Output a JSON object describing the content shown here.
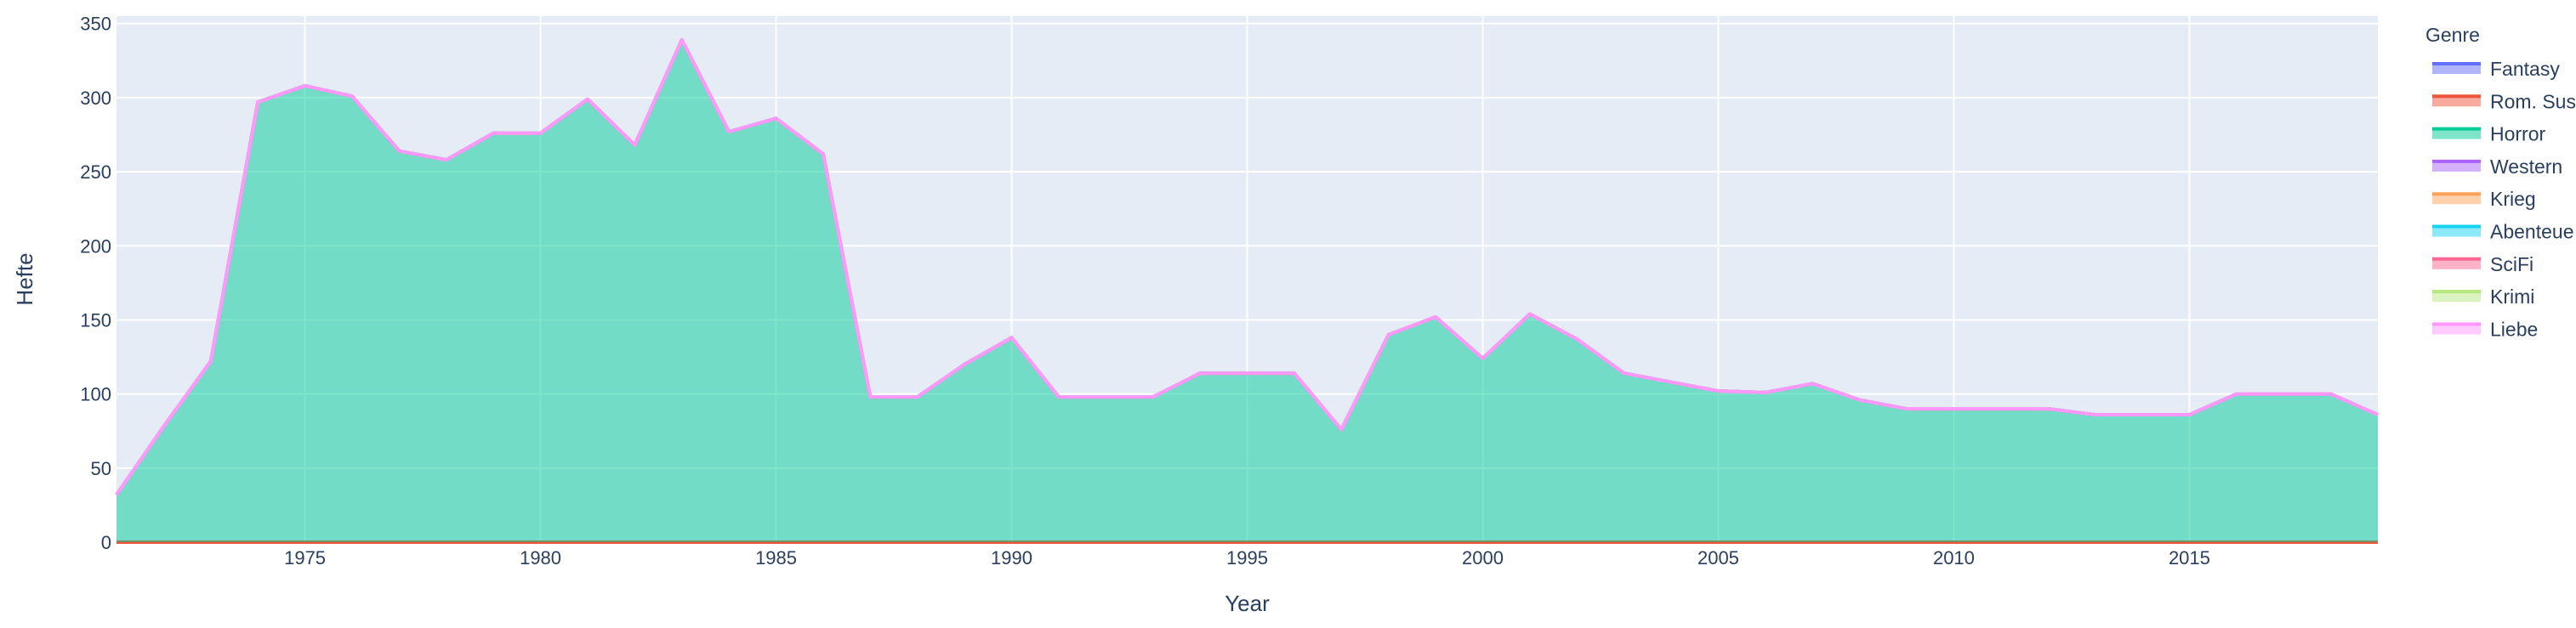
{
  "chart_data": {
    "type": "area",
    "title": "",
    "xlabel": "Year",
    "ylabel": "Hefte",
    "xlim": [
      1971,
      2019
    ],
    "ylim": [
      0,
      355
    ],
    "x_ticks": [
      1975,
      1980,
      1985,
      1990,
      1995,
      2000,
      2005,
      2010,
      2015
    ],
    "y_ticks": [
      0,
      50,
      100,
      150,
      200,
      250,
      300,
      350
    ],
    "grid": true,
    "legend": {
      "title": "Genre",
      "position": "right",
      "entries": [
        "Fantasy",
        "Rom. Sus",
        "Horror",
        "Western",
        "Krieg",
        "Abenteue",
        "SciFi",
        "Krimi",
        "Liebe"
      ]
    },
    "x": [
      1971,
      1972,
      1973,
      1974,
      1975,
      1976,
      1977,
      1978,
      1979,
      1980,
      1981,
      1982,
      1983,
      1984,
      1985,
      1986,
      1987,
      1988,
      1989,
      1990,
      1991,
      1992,
      1993,
      1994,
      1995,
      1996,
      1997,
      1998,
      1999,
      2000,
      2001,
      2002,
      2003,
      2004,
      2005,
      2006,
      2007,
      2008,
      2009,
      2010,
      2011,
      2012,
      2013,
      2014,
      2015,
      2016,
      2017,
      2018,
      2019
    ],
    "series": [
      {
        "name": "Fantasy",
        "color": "#636efa",
        "values": [
          0,
          0,
          0,
          0,
          0,
          0,
          0,
          0,
          0,
          0,
          0,
          0,
          0,
          0,
          0,
          0,
          0,
          0,
          0,
          0,
          0,
          0,
          0,
          0,
          0,
          0,
          0,
          0,
          0,
          0,
          0,
          0,
          0,
          0,
          0,
          0,
          0,
          0,
          0,
          0,
          0,
          0,
          0,
          0,
          0,
          0,
          0,
          0,
          0
        ]
      },
      {
        "name": "Rom. Sus",
        "color": "#EF553B",
        "values": [
          0,
          0,
          0,
          0,
          0,
          0,
          0,
          0,
          0,
          0,
          0,
          0,
          0,
          0,
          0,
          0,
          0,
          0,
          0,
          0,
          0,
          0,
          0,
          0,
          0,
          0,
          0,
          0,
          0,
          0,
          0,
          0,
          0,
          0,
          0,
          0,
          0,
          0,
          0,
          0,
          0,
          0,
          0,
          0,
          0,
          0,
          0,
          0,
          0
        ]
      },
      {
        "name": "Horror",
        "color": "#00cc96",
        "values": [
          32,
          78,
          122,
          297,
          308,
          301,
          264,
          258,
          276,
          276,
          299,
          268,
          339,
          277,
          286,
          262,
          98,
          98,
          120,
          138,
          98,
          98,
          98,
          114,
          114,
          114,
          76,
          140,
          152,
          124,
          154,
          137,
          114,
          108,
          102,
          101,
          107,
          96,
          90,
          90,
          90,
          90,
          86,
          86,
          86,
          100,
          100,
          100,
          86
        ]
      },
      {
        "name": "Western",
        "color": "#ab63fa",
        "values": [
          0,
          0,
          0,
          0,
          0,
          0,
          0,
          0,
          0,
          0,
          0,
          0,
          0,
          0,
          0,
          0,
          0,
          0,
          0,
          0,
          0,
          0,
          0,
          0,
          0,
          0,
          0,
          0,
          0,
          0,
          0,
          0,
          0,
          0,
          0,
          0,
          0,
          0,
          0,
          0,
          0,
          0,
          0,
          0,
          0,
          0,
          0,
          0,
          0
        ]
      },
      {
        "name": "Krieg",
        "color": "#FFA15A",
        "values": [
          0,
          0,
          0,
          0,
          0,
          0,
          0,
          0,
          0,
          0,
          0,
          0,
          0,
          0,
          0,
          0,
          0,
          0,
          0,
          0,
          0,
          0,
          0,
          0,
          0,
          0,
          0,
          0,
          0,
          0,
          0,
          0,
          0,
          0,
          0,
          0,
          0,
          0,
          0,
          0,
          0,
          0,
          0,
          0,
          0,
          0,
          0,
          0,
          0
        ]
      },
      {
        "name": "Abenteue",
        "color": "#19d3f3",
        "values": [
          0,
          0,
          0,
          0,
          0,
          0,
          0,
          0,
          0,
          0,
          0,
          0,
          0,
          0,
          0,
          0,
          0,
          0,
          0,
          0,
          0,
          0,
          0,
          0,
          0,
          0,
          0,
          0,
          0,
          0,
          0,
          0,
          0,
          0,
          0,
          0,
          0,
          0,
          0,
          0,
          0,
          0,
          0,
          0,
          0,
          0,
          0,
          0,
          0
        ]
      },
      {
        "name": "SciFi",
        "color": "#FF6692",
        "values": [
          0,
          0,
          0,
          0,
          0,
          0,
          0,
          0,
          0,
          0,
          0,
          0,
          0,
          0,
          0,
          0,
          0,
          0,
          0,
          0,
          0,
          0,
          0,
          0,
          0,
          0,
          0,
          0,
          0,
          0,
          0,
          0,
          0,
          0,
          0,
          0,
          0,
          0,
          0,
          0,
          0,
          0,
          0,
          0,
          0,
          0,
          0,
          0,
          0
        ]
      },
      {
        "name": "Krimi",
        "color": "#B6E880",
        "values": [
          0,
          0,
          0,
          0,
          0,
          0,
          0,
          0,
          0,
          0,
          0,
          0,
          0,
          0,
          0,
          0,
          0,
          0,
          0,
          0,
          0,
          0,
          0,
          0,
          0,
          0,
          0,
          0,
          0,
          0,
          0,
          0,
          0,
          0,
          0,
          0,
          0,
          0,
          0,
          0,
          0,
          0,
          0,
          0,
          0,
          0,
          0,
          0,
          0
        ]
      },
      {
        "name": "Liebe",
        "color": "#FF97FF",
        "values": [
          0,
          0,
          0,
          0,
          0,
          0,
          0,
          0,
          0,
          0,
          0,
          0,
          0,
          0,
          0,
          0,
          0,
          0,
          0,
          0,
          0,
          0,
          0,
          0,
          0,
          0,
          0,
          0,
          0,
          0,
          0,
          0,
          0,
          0,
          0,
          0,
          0,
          0,
          0,
          0,
          0,
          0,
          0,
          0,
          0,
          0,
          0,
          0,
          0
        ]
      }
    ],
    "colors": {
      "plot_bg": "#e5ecf6",
      "grid": "#ffffff",
      "text": "#2a3f5f"
    }
  }
}
